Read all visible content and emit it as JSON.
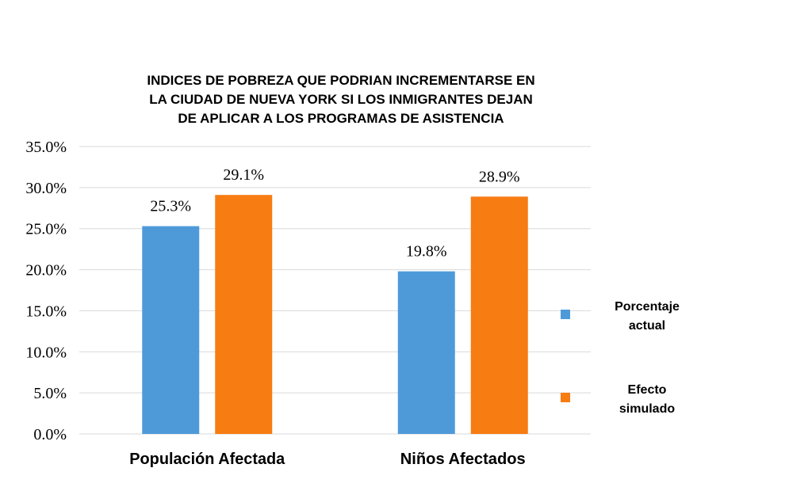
{
  "chart_data": {
    "type": "bar",
    "title": "INDICES DE POBREZA QUE PODRIAN INCREMENTARSE EN\nLA CIUDAD DE NUEVA YORK SI LOS INMIGRANTES DEJAN\nDE APLICAR A LOS PROGRAMAS DE ASISTENCIA",
    "categories": [
      "Populación Afectada",
      "Niños Afectados"
    ],
    "series": [
      {
        "name": "Porcentaje actual",
        "values": [
          25.3,
          19.8
        ],
        "labels": [
          "25.3%",
          "19.8%"
        ],
        "color": "#4e9ad9",
        "legend_lines": [
          "Porcentaje",
          "actual"
        ]
      },
      {
        "name": "Efecto simulado",
        "values": [
          29.1,
          28.9
        ],
        "labels": [
          "29.1%",
          "28.9%"
        ],
        "color": "#f77c12",
        "legend_lines": [
          "Efecto",
          "simulado"
        ]
      }
    ],
    "ylim": [
      0,
      35
    ],
    "yticks": [
      "0.0%",
      "5.0%",
      "10.0%",
      "15.0%",
      "20.0%",
      "25.0%",
      "30.0%",
      "35.0%"
    ],
    "grid": true,
    "legend_position": "right",
    "xlabel": "",
    "ylabel": ""
  }
}
